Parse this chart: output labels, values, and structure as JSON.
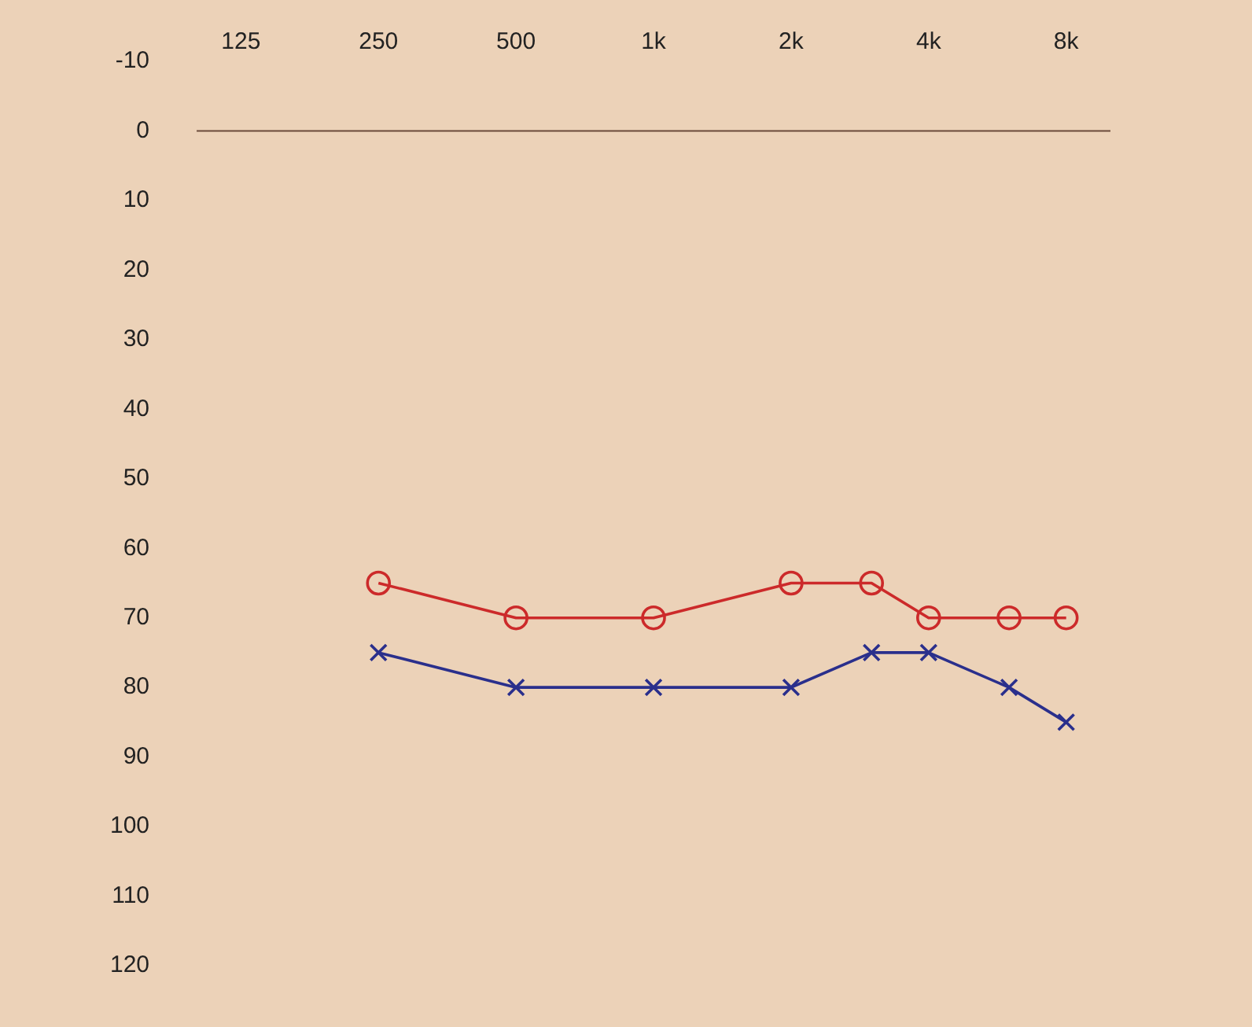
{
  "chart_data": {
    "type": "line",
    "x": [
      250,
      500,
      1000,
      2000,
      3000,
      4000,
      6000,
      8000
    ],
    "series": [
      {
        "color": "#cc2a2a",
        "marker": "circle",
        "values": [
          65,
          70,
          70,
          65,
          65,
          70,
          70,
          70
        ]
      },
      {
        "color": "#2a2f8c",
        "marker": "cross",
        "values": [
          75,
          80,
          80,
          80,
          75,
          75,
          80,
          85
        ]
      }
    ],
    "log": "x",
    "xlim": [
      100,
      10000
    ],
    "xticks": [
      125,
      250,
      500,
      {
        "value": 1000,
        "label": "1k"
      },
      {
        "value": 2000,
        "label": "2k"
      },
      {
        "value": 4000,
        "label": "4k"
      },
      {
        "value": 8000,
        "label": "8k"
      }
    ],
    "ylim": [
      120,
      -10
    ],
    "yticks": [
      -10,
      0,
      10,
      20,
      30,
      40,
      50,
      60,
      70,
      80,
      90,
      100,
      110,
      120
    ],
    "ref_lines": [
      {
        "axis": "y",
        "value": 0,
        "color": "#6a4a3a"
      }
    ],
    "grid": false,
    "legend": false,
    "line_style": "solid"
  }
}
